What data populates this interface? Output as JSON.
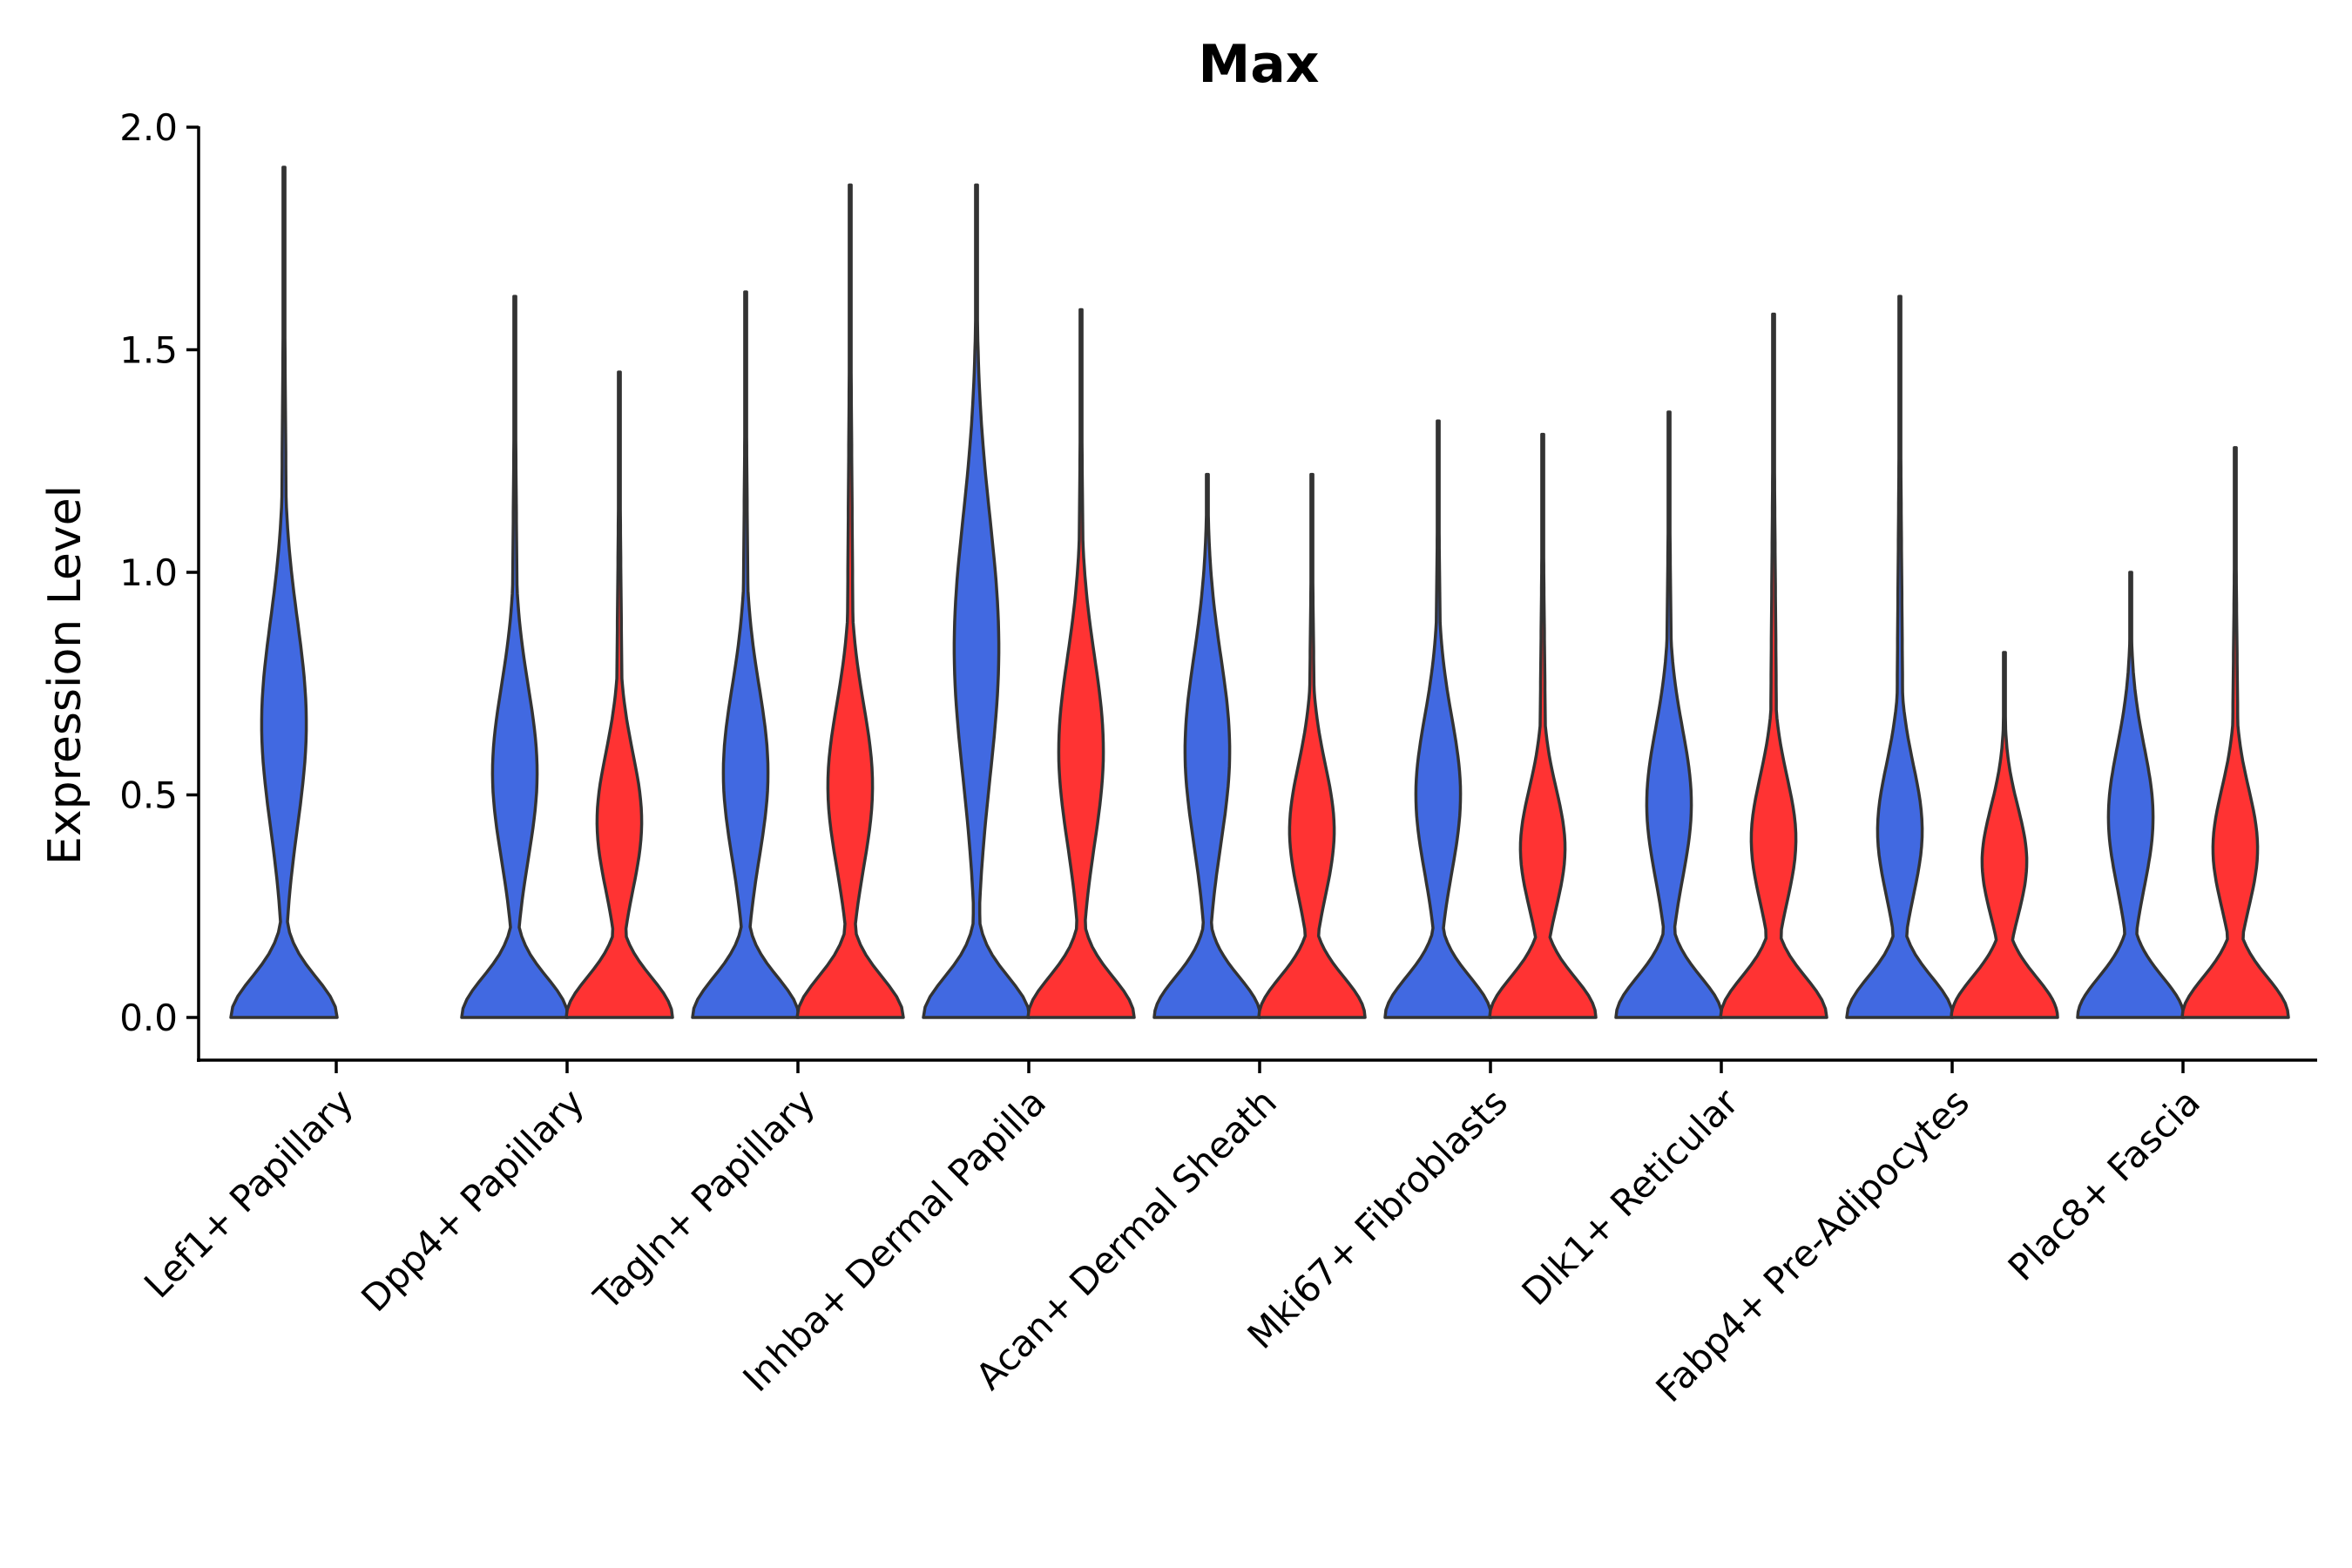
{
  "chart_data": {
    "type": "violin",
    "title": "Max",
    "xlabel": "",
    "ylabel": "Expression Level",
    "ylim": [
      -0.1,
      2.0
    ],
    "yticks": [
      "0.0",
      "0.5",
      "1.0",
      "1.5",
      "2.0"
    ],
    "grid": false,
    "legend": "none",
    "split": true,
    "colors": {
      "group1": "#4169E1",
      "group2": "#FF3333",
      "outline": "#333333"
    },
    "categories": [
      "Lef1+ Papillary",
      "Dpp4+ Papillary",
      "Tagln+ Papillary",
      "Inhba+ Dermal Papilla",
      "Acan+ Dermal Sheath",
      "Mki67+ Fibroblasts",
      "Dlk1+ Reticular",
      "Fabp4+ Pre-Adipocytes",
      "Plac8+ Fascia"
    ],
    "series": [
      {
        "name": "group1",
        "max": [
          1.91,
          1.62,
          1.63,
          1.87,
          1.22,
          1.34,
          1.36,
          1.62,
          1.0
        ],
        "mode": [
          0.0,
          0.0,
          0.0,
          0.0,
          0.0,
          0.0,
          0.0,
          0.0,
          0.0
        ],
        "secondary_mode": [
          0.66,
          0.55,
          0.55,
          0.83,
          0.6,
          0.5,
          0.48,
          0.42,
          0.45
        ]
      },
      {
        "name": "group2",
        "max": [
          null,
          1.45,
          1.87,
          1.59,
          1.22,
          1.31,
          1.58,
          0.82,
          1.28
        ],
        "mode": [
          null,
          0.0,
          0.0,
          0.0,
          0.0,
          0.0,
          0.0,
          0.0,
          0.0
        ],
        "secondary_mode": [
          null,
          0.44,
          0.52,
          0.6,
          0.42,
          0.38,
          0.4,
          0.35,
          0.38
        ]
      }
    ]
  }
}
